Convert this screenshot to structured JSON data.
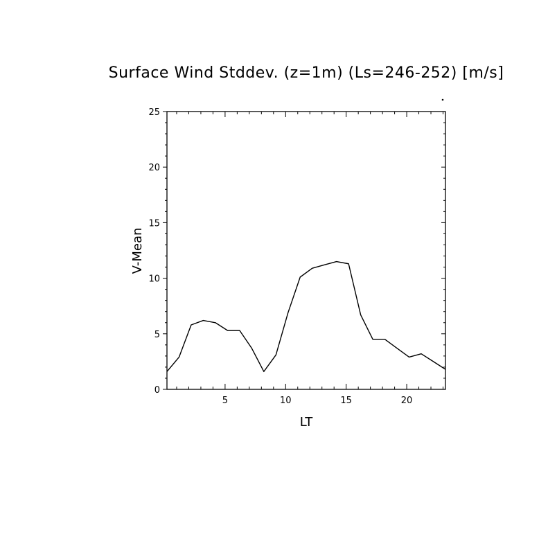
{
  "chart_data": {
    "type": "line",
    "title": "Surface Wind Stddev. (z=1m) (Ls=246-252) [m/s]",
    "xlabel": "LT",
    "ylabel": "V-Mean",
    "xlim": [
      0.2,
      23.2
    ],
    "ylim": [
      0,
      25
    ],
    "x_ticks": [
      5,
      10,
      15,
      20
    ],
    "y_ticks": [
      0,
      5,
      10,
      15,
      20,
      25
    ],
    "x_tick_labels": [
      "5",
      "10",
      "15",
      "20"
    ],
    "y_tick_labels": [
      "0",
      "5",
      "10",
      "15",
      "20",
      "25"
    ],
    "grid": false,
    "legend": "none",
    "series": [
      {
        "x": [
          0.2,
          1.2,
          2.2,
          3.2,
          4.2,
          5.2,
          6.2,
          7.2,
          8.2,
          9.2,
          10.2,
          11.2,
          12.2,
          13.2,
          14.2,
          15.2,
          16.2,
          17.2,
          18.2,
          19.2,
          20.2,
          21.2,
          22.2,
          23.2
        ],
        "values": [
          1.6,
          2.9,
          5.8,
          6.2,
          6.0,
          5.3,
          5.3,
          3.7,
          1.6,
          3.1,
          6.9,
          10.1,
          10.9,
          11.2,
          11.5,
          11.3,
          6.7,
          4.5,
          4.5,
          3.7,
          2.9,
          3.2,
          2.5,
          1.8
        ],
        "color": "#000000"
      }
    ]
  }
}
